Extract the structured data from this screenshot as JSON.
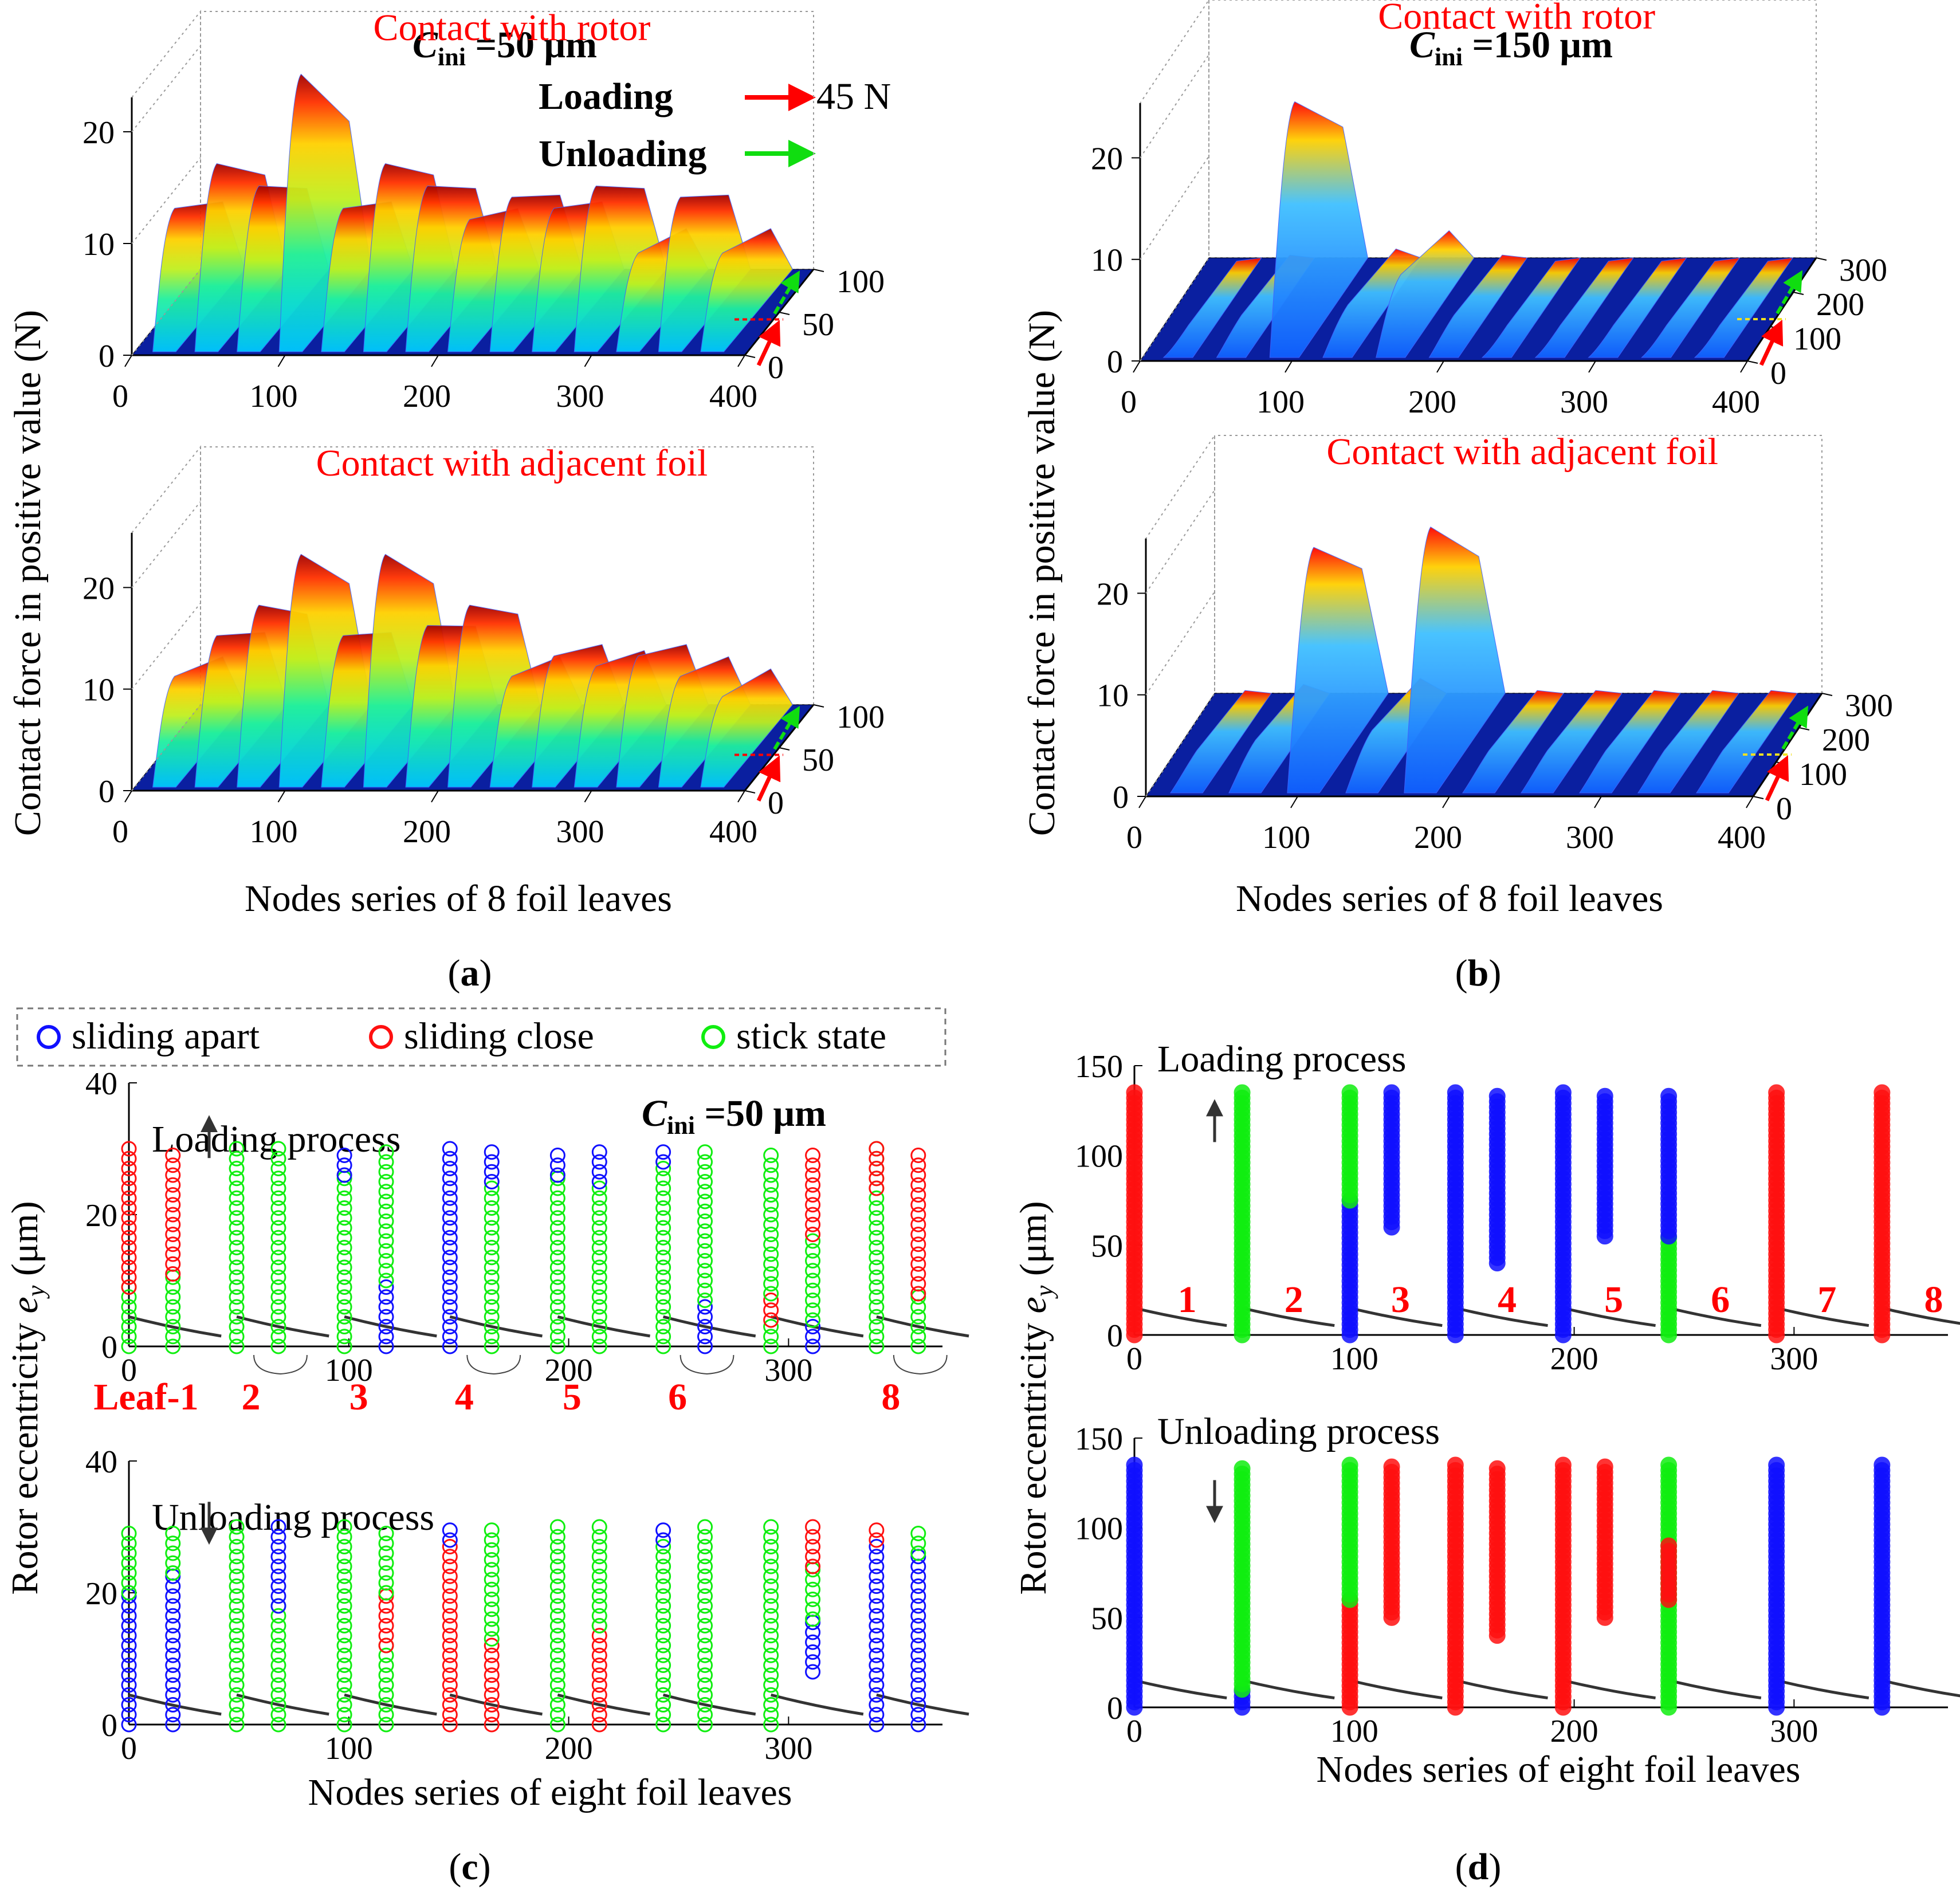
{
  "chart_data": [
    {
      "id": "a",
      "type": "surface3d",
      "caption": "(a)",
      "caption_letter": "a",
      "title_symbol": "C",
      "title_sub": "ini",
      "title_value": " =50 μm",
      "ylabel": "Contact force in positive value (N)",
      "xlabel": "Nodes series of 8 foil leaves",
      "legend": {
        "loading": "Loading",
        "load_value": "45 N",
        "unloading": "Unloading"
      },
      "panels": [
        {
          "label": "Contact with rotor",
          "x_ticks": [
            "0",
            "100",
            "200",
            "300",
            "400"
          ],
          "z_ticks": [
            "0",
            "10",
            "20"
          ],
          "y_ticks": [
            "0",
            "50",
            "100"
          ],
          "peaks": [
            12,
            16,
            14,
            24,
            12,
            16,
            14,
            11,
            13,
            12,
            14,
            8,
            13,
            8
          ]
        },
        {
          "label": "Contact with adjacent foil",
          "x_ticks": [
            "0",
            "100",
            "200",
            "300",
            "400"
          ],
          "z_ticks": [
            "0",
            "10",
            "20"
          ],
          "y_ticks": [
            "0",
            "50",
            "100"
          ],
          "peaks": [
            10,
            14,
            17,
            22,
            14,
            22,
            15,
            17,
            10,
            12,
            11,
            12,
            10,
            8
          ]
        }
      ]
    },
    {
      "id": "b",
      "type": "surface3d",
      "caption": "(b)",
      "caption_letter": "b",
      "title_symbol": "C",
      "title_sub": "ini",
      "title_value": " =150 μm",
      "xlabel": "Nodes series of 8 foil leaves",
      "ylabel": "Contact force in positive value (N)",
      "panels": [
        {
          "label": "Contact with rotor",
          "x_ticks": [
            "0",
            "100",
            "200",
            "300",
            "400"
          ],
          "z_ticks": [
            "0",
            "10",
            "20"
          ],
          "y_ticks": [
            "0",
            "100",
            "200",
            "300"
          ],
          "peaks": [
            2,
            3,
            24,
            4,
            7,
            3,
            2,
            2,
            2,
            2,
            2
          ]
        },
        {
          "label": "Contact with adjacent foil",
          "x_ticks": [
            "0",
            "100",
            "200",
            "300",
            "400"
          ],
          "z_ticks": [
            "0",
            "10",
            "20"
          ],
          "y_ticks": [
            "0",
            "100",
            "200",
            "300"
          ],
          "peaks": [
            3,
            4,
            23,
            5,
            25,
            3,
            3,
            3,
            3,
            3
          ]
        }
      ]
    },
    {
      "id": "c",
      "type": "scatter",
      "caption": "(c)",
      "caption_letter": "c",
      "title_symbol": "C",
      "title_sub": "ini",
      "title_value": " =50 μm",
      "xlabel": "Nodes series of eight foil leaves",
      "ylabel_prefix": "Rotor eccentricity ",
      "ylabel_var": "e",
      "ylabel_sub": "y",
      "ylabel_unit": " (μm)",
      "legend": [
        "sliding apart",
        "sliding close",
        "stick state"
      ],
      "leaf_labels": [
        "Leaf-1",
        "2",
        "3",
        "4",
        "5",
        "6",
        "8"
      ],
      "x_range": [
        0,
        370
      ],
      "y_range": [
        0,
        40
      ],
      "x_ticks": [
        "0",
        "100",
        "200",
        "300"
      ],
      "y_ticks": [
        "0",
        "20",
        "40"
      ],
      "max_ey": 30,
      "column_x": [
        0,
        20,
        49,
        68,
        98,
        117,
        146,
        165,
        195,
        214,
        243,
        262,
        292,
        311,
        340,
        359
      ],
      "panels": [
        {
          "label": "Loading process",
          "direction": "up",
          "columns": [
            [
              [
                "g",
                0,
                9
              ],
              [
                "r",
                9,
                30
              ]
            ],
            [
              [
                "g",
                0,
                11
              ],
              [
                "r",
                11,
                30
              ]
            ],
            [
              [
                "g",
                0,
                30
              ]
            ],
            [
              [
                "g",
                0,
                30
              ]
            ],
            [
              [
                "g",
                0,
                26
              ],
              [
                "b",
                26,
                30
              ]
            ],
            [
              [
                "b",
                0,
                10
              ],
              [
                "g",
                10,
                30
              ]
            ],
            [
              [
                "b",
                0,
                30
              ]
            ],
            [
              [
                "g",
                0,
                25
              ],
              [
                "b",
                25,
                30
              ]
            ],
            [
              [
                "g",
                0,
                26
              ],
              [
                "b",
                26,
                30
              ]
            ],
            [
              [
                "g",
                0,
                25
              ],
              [
                "b",
                25,
                30
              ]
            ],
            [
              [
                "g",
                0,
                28
              ],
              [
                "b",
                28,
                30
              ]
            ],
            [
              [
                "b",
                0,
                7
              ],
              [
                "g",
                7,
                30
              ]
            ],
            [
              [
                "g",
                0,
                4
              ],
              [
                "r",
                4,
                8
              ],
              [
                "g",
                8,
                30
              ]
            ],
            [
              [
                "b",
                0,
                4
              ],
              [
                "g",
                4,
                17
              ],
              [
                "r",
                17,
                30
              ]
            ],
            [
              [
                "g",
                0,
                30
              ],
              [
                "r",
                24,
                30
              ]
            ],
            [
              [
                "g",
                0,
                8
              ],
              [
                "r",
                8,
                30
              ]
            ]
          ]
        },
        {
          "label": "Unloading process",
          "direction": "down",
          "columns": [
            [
              [
                "b",
                0,
                20
              ],
              [
                "g",
                20,
                30
              ]
            ],
            [
              [
                "b",
                0,
                23
              ],
              [
                "g",
                23,
                30
              ]
            ],
            [
              [
                "g",
                0,
                30
              ]
            ],
            [
              [
                "g",
                0,
                18
              ],
              [
                "b",
                18,
                30
              ]
            ],
            [
              [
                "g",
                0,
                30
              ]
            ],
            [
              [
                "g",
                0,
                12
              ],
              [
                "r",
                12,
                20
              ],
              [
                "g",
                20,
                30
              ]
            ],
            [
              [
                "r",
                0,
                28
              ],
              [
                "b",
                28,
                30
              ]
            ],
            [
              [
                "r",
                0,
                13
              ],
              [
                "g",
                13,
                30
              ]
            ],
            [
              [
                "g",
                0,
                30
              ]
            ],
            [
              [
                "r",
                0,
                15
              ],
              [
                "g",
                15,
                30
              ]
            ],
            [
              [
                "g",
                0,
                28
              ],
              [
                "b",
                28,
                30
              ]
            ],
            [
              [
                "g",
                0,
                30
              ]
            ],
            [
              [
                "g",
                0,
                30
              ]
            ],
            [
              [
                "b",
                8,
                16
              ],
              [
                "g",
                16,
                24
              ],
              [
                "r",
                24,
                30
              ]
            ],
            [
              [
                "b",
                0,
                28
              ],
              [
                "r",
                28,
                30
              ]
            ],
            [
              [
                "b",
                0,
                26
              ],
              [
                "g",
                26,
                30
              ]
            ]
          ]
        }
      ]
    },
    {
      "id": "d",
      "type": "scatter",
      "caption": "(d)",
      "caption_letter": "d",
      "xlabel": "Nodes series of eight foil leaves",
      "ylabel_prefix": "Rotor eccentricity ",
      "ylabel_var": "e",
      "ylabel_sub": "y",
      "ylabel_unit": " (μm)",
      "leaf_labels": [
        "1",
        "2",
        "3",
        "4",
        "5",
        "6",
        "7",
        "8"
      ],
      "x_range": [
        0,
        370
      ],
      "y_range": [
        0,
        150
      ],
      "x_ticks": [
        "0",
        "100",
        "200",
        "300"
      ],
      "y_ticks": [
        "0",
        "50",
        "100",
        "150"
      ],
      "column_x": [
        0,
        49,
        117,
        98,
        146,
        165,
        195,
        214,
        243,
        292,
        340
      ],
      "panels": [
        {
          "label": "Loading process",
          "direction": "up",
          "columns": [
            {
              "x": 0,
              "segs": [
                [
                  "r",
                  0,
                  135
                ]
              ]
            },
            {
              "x": 49,
              "segs": [
                [
                  "g",
                  0,
                  135
                ]
              ]
            },
            {
              "x": 98,
              "segs": [
                [
                  "b",
                  0,
                  75
                ],
                [
                  "g",
                  75,
                  135
                ]
              ]
            },
            {
              "x": 117,
              "segs": [
                [
                  "b",
                  60,
                  135
                ]
              ]
            },
            {
              "x": 146,
              "segs": [
                [
                  "b",
                  0,
                  135
                ]
              ]
            },
            {
              "x": 165,
              "segs": [
                [
                  "b",
                  40,
                  135
                ]
              ]
            },
            {
              "x": 195,
              "segs": [
                [
                  "b",
                  0,
                  135
                ]
              ]
            },
            {
              "x": 214,
              "segs": [
                [
                  "b",
                  55,
                  135
                ]
              ]
            },
            {
              "x": 243,
              "segs": [
                [
                  "g",
                  0,
                  55
                ],
                [
                  "b",
                  55,
                  135
                ]
              ]
            },
            {
              "x": 292,
              "segs": [
                [
                  "r",
                  0,
                  135
                ]
              ]
            },
            {
              "x": 340,
              "segs": [
                [
                  "r",
                  0,
                  135
                ]
              ]
            }
          ]
        },
        {
          "label": "Unloading process",
          "direction": "down",
          "columns": [
            {
              "x": 0,
              "segs": [
                [
                  "b",
                  0,
                  135
                ]
              ]
            },
            {
              "x": 49,
              "segs": [
                [
                  "b",
                  0,
                  10
                ],
                [
                  "g",
                  10,
                  135
                ]
              ]
            },
            {
              "x": 98,
              "segs": [
                [
                  "r",
                  0,
                  60
                ],
                [
                  "g",
                  60,
                  135
                ]
              ]
            },
            {
              "x": 117,
              "segs": [
                [
                  "r",
                  50,
                  135
                ]
              ]
            },
            {
              "x": 146,
              "segs": [
                [
                  "r",
                  0,
                  135
                ]
              ]
            },
            {
              "x": 165,
              "segs": [
                [
                  "r",
                  40,
                  135
                ]
              ]
            },
            {
              "x": 195,
              "segs": [
                [
                  "r",
                  0,
                  135
                ]
              ]
            },
            {
              "x": 214,
              "segs": [
                [
                  "r",
                  50,
                  135
                ]
              ]
            },
            {
              "x": 243,
              "segs": [
                [
                  "g",
                  0,
                  135
                ],
                [
                  "r",
                  60,
                  90
                ]
              ]
            },
            {
              "x": 292,
              "segs": [
                [
                  "b",
                  0,
                  135
                ]
              ]
            },
            {
              "x": 340,
              "segs": [
                [
                  "b",
                  0,
                  135
                ]
              ]
            }
          ]
        }
      ]
    }
  ],
  "colors": {
    "apart": "#1010ff",
    "close": "#ff1010",
    "stick": "#10ee10",
    "surface_base": "#0a1fa0",
    "title_red": "#ff0000",
    "arrow_red": "#ff0000",
    "arrow_green": "#10dd10",
    "dash_yellow": "#f0e020"
  }
}
